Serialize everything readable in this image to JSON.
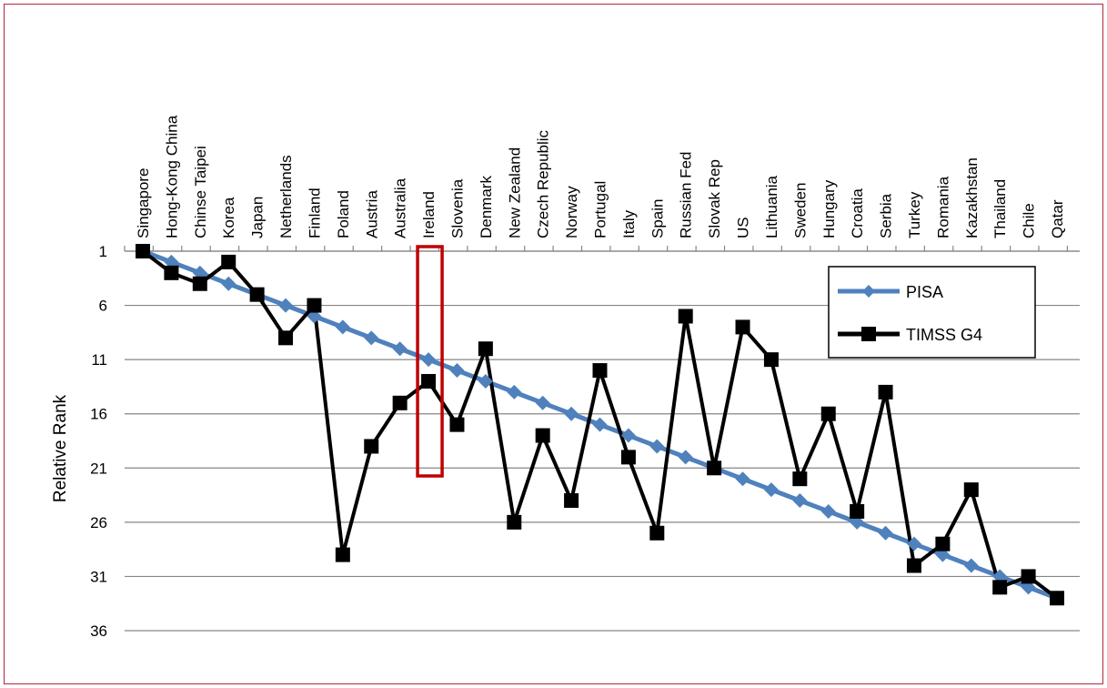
{
  "chart_data": {
    "type": "line",
    "ylabel": "Relative Rank",
    "y_inverted": true,
    "ylim": [
      1,
      36
    ],
    "yticks": [
      1,
      6,
      11,
      16,
      21,
      26,
      31,
      36
    ],
    "x_axis_position": "top",
    "x_tick_label_orientation": "vertical",
    "gridlines": "horizontal",
    "categories": [
      "Singapore",
      "Hong-Kong China",
      "Chinse Taipei",
      "Korea",
      "Japan",
      "Netherlands",
      "Finland",
      "Poland",
      "Austria",
      "Australia",
      "Ireland",
      "Slovenia",
      "Denmark",
      "New Zealand",
      "Czech Republic",
      "Norway",
      "Portugal",
      "Italy",
      "Spain",
      "Russian Fed",
      "Slovak Rep",
      "US",
      "Lithuania",
      "Sweden",
      "Hungary",
      "Croatia",
      "Serbia",
      "Turkey",
      "Romania",
      "Kazakhstan",
      "Thailand",
      "Chile",
      "Qatar"
    ],
    "series": [
      {
        "name": "PISA",
        "color": "#4f81bd",
        "marker": "diamond",
        "values": [
          1,
          2,
          3,
          4,
          5,
          6,
          7,
          8,
          9,
          10,
          11,
          12,
          13,
          14,
          15,
          16,
          17,
          18,
          19,
          20,
          21,
          22,
          23,
          24,
          25,
          26,
          27,
          28,
          29,
          30,
          31,
          32,
          33
        ]
      },
      {
        "name": "TIMSS G4",
        "color": "#000000",
        "marker": "square",
        "values": [
          1,
          3,
          4,
          2,
          5,
          9,
          6,
          29,
          19,
          15,
          13,
          17,
          10,
          26,
          18,
          24,
          12,
          20,
          27,
          7,
          21,
          8,
          11,
          22,
          16,
          25,
          14,
          30,
          28,
          23,
          32,
          31,
          33
        ]
      }
    ],
    "legend": {
      "position": "top-right",
      "entries": [
        "PISA",
        "TIMSS G4"
      ]
    },
    "highlight": {
      "category": "Ireland",
      "color": "#c00000"
    }
  }
}
